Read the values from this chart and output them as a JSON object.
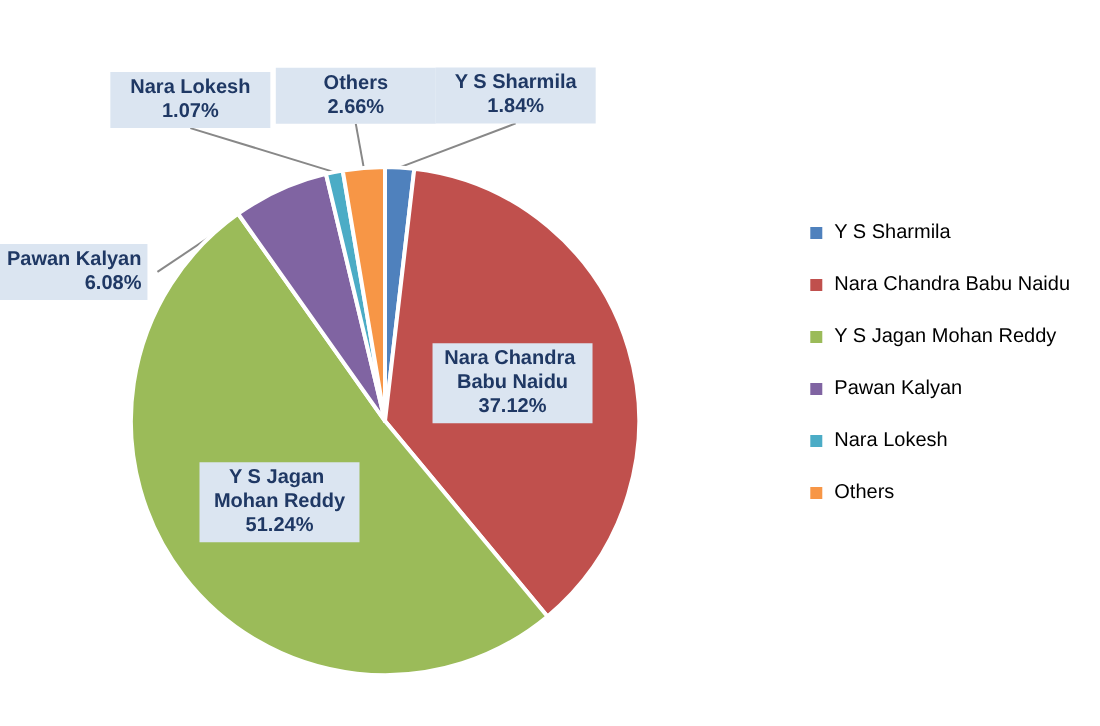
{
  "chart_data": {
    "type": "pie",
    "categories": [
      "Y S Sharmila",
      "Nara Chandra Babu Naidu",
      "Y S Jagan Mohan Reddy",
      "Pawan Kalyan",
      "Nara Lokesh",
      "Others"
    ],
    "values": [
      1.84,
      37.12,
      51.24,
      6.08,
      1.07,
      2.66
    ],
    "value_labels": [
      "1.84%",
      "37.12%",
      "51.24%",
      "6.08%",
      "1.07%",
      "2.66%"
    ],
    "colors": [
      "#4f81bd",
      "#c0504d",
      "#9bbb59",
      "#8064a2",
      "#4bacc6",
      "#f79646"
    ],
    "legend": "right"
  }
}
